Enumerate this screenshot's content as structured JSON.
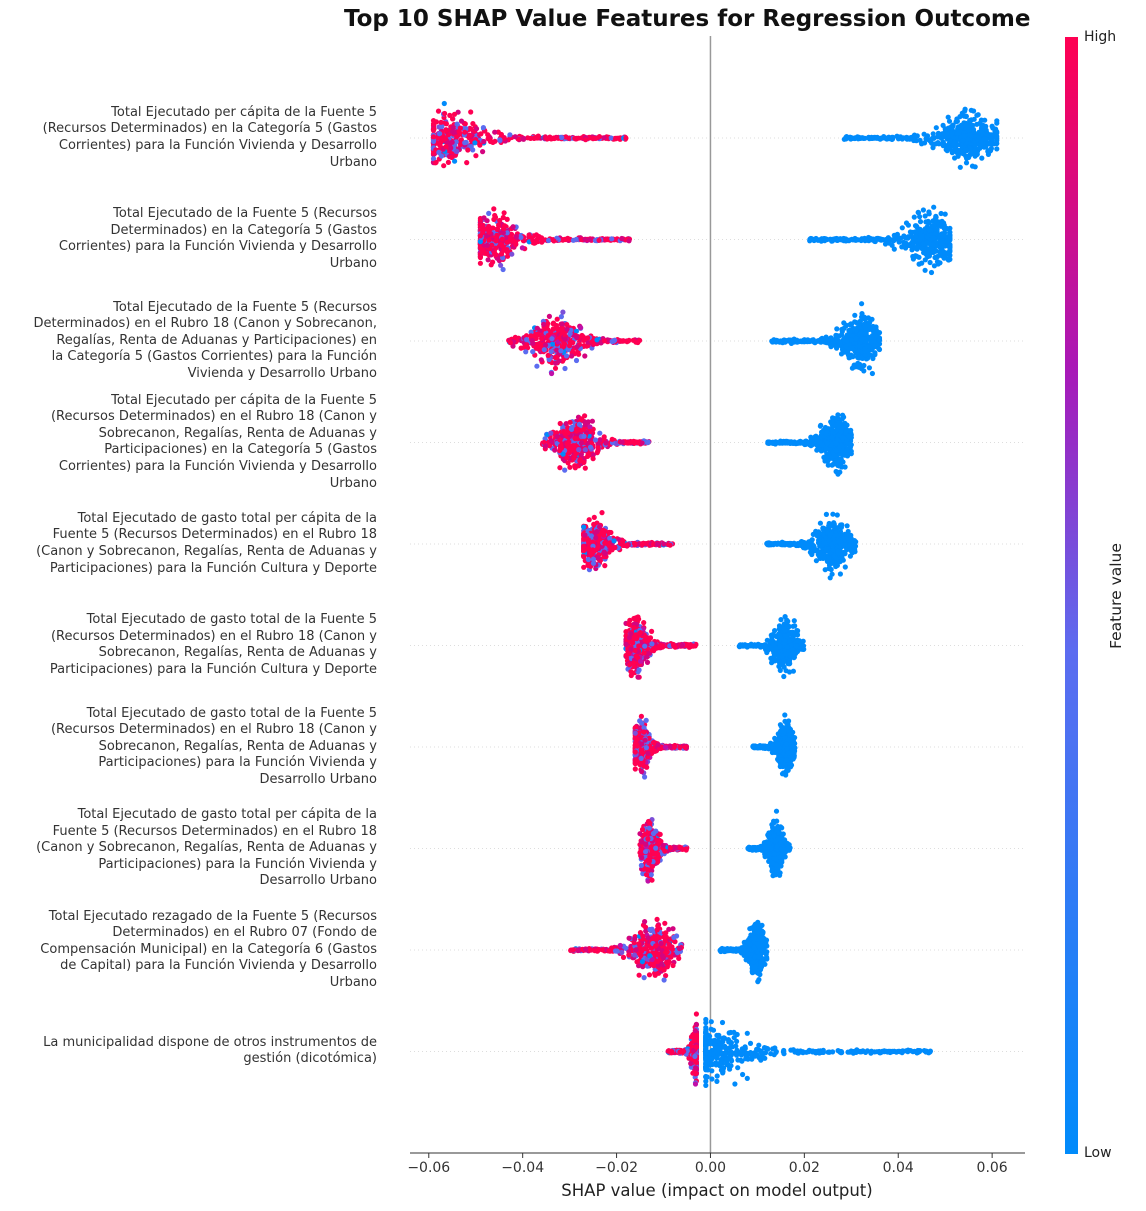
{
  "chart_data": {
    "type": "scatter",
    "subtype": "shap-beeswarm",
    "title": "Top 10 SHAP Value Features for Regression Outcome",
    "xlabel": "SHAP value (impact on model output)",
    "xlim": [
      -0.064,
      0.067
    ],
    "xticks": [
      -0.06,
      -0.04,
      -0.02,
      0.0,
      0.02,
      0.04,
      0.06
    ],
    "xtick_labels": [
      "−0.06",
      "−0.04",
      "−0.02",
      "0.00",
      "0.02",
      "0.04",
      "0.06"
    ],
    "grid": false,
    "colorbar": {
      "label": "Feature value",
      "high_label": "High",
      "low_label": "Low",
      "high_color": "#ff0052",
      "low_color": "#008bfb"
    },
    "features": [
      {
        "name": "Total Ejecutado per cápita de la Fuente 5 (Recursos Determinados) en la Categoría 5 (Gastos Corrientes) para la Función Vivienda y Desarrollo Urbano",
        "label_lines": [
          "Total Ejecutado per cápita de la Fuente 5",
          "(Recursos Determinados) en la Categoría 5 (Gastos",
          "Corrientes) para la Función Vivienda y Desarrollo",
          "Urbano"
        ],
        "low_range": [
          0.028,
          0.061
        ],
        "low_peak": 0.055,
        "high_range": [
          -0.059,
          -0.018
        ],
        "high_peak": -0.056
      },
      {
        "name": "Total Ejecutado de la Fuente 5 (Recursos Determinados) en la Categoría 5 (Gastos Corrientes) para la Función Vivienda y Desarrollo Urbano",
        "label_lines": [
          "Total Ejecutado de la Fuente 5 (Recursos",
          "Determinados) en la Categoría 5 (Gastos",
          "Corrientes) para la Función Vivienda y Desarrollo",
          "Urbano"
        ],
        "low_range": [
          0.021,
          0.051
        ],
        "low_peak": 0.047,
        "high_range": [
          -0.049,
          -0.017
        ],
        "high_peak": -0.047
      },
      {
        "name": "Total Ejecutado de la Fuente 5 (Recursos Determinados) en el Rubro 18 (Canon y Sobrecanon, Regalías, Renta de Aduanas y Participaciones) en la Categoría 5 (Gastos Corrientes) para la Función Vivienda y Desarrollo Urbano",
        "label_lines": [
          "Total Ejecutado de la Fuente 5 (Recursos",
          "Determinados) en el Rubro 18 (Canon y Sobrecanon,",
          "Regalías, Renta de Aduanas y Participaciones) en",
          "la Categoría 5 (Gastos Corrientes) para la Función",
          "Vivienda y Desarrollo Urbano"
        ],
        "low_range": [
          0.013,
          0.036
        ],
        "low_peak": 0.032,
        "high_range": [
          -0.043,
          -0.015
        ],
        "high_peak": -0.033
      },
      {
        "name": "Total Ejecutado per cápita de la Fuente 5 (Recursos Determinados) en el Rubro 18 (Canon y Sobrecanon, Regalías, Renta de Aduanas y Participaciones) en la Categoría 5 (Gastos Corrientes) para la Función Vivienda y Desarrollo Urbano",
        "label_lines": [
          "Total Ejecutado per cápita de la Fuente 5",
          "(Recursos Determinados) en el Rubro 18 (Canon y",
          "Sobrecanon, Regalías, Renta de Aduanas y",
          "Participaciones) en la Categoría 5 (Gastos",
          "Corrientes) para la Función Vivienda y Desarrollo",
          "Urbano"
        ],
        "low_range": [
          0.012,
          0.03
        ],
        "low_peak": 0.027,
        "high_range": [
          -0.036,
          -0.013
        ],
        "high_peak": -0.029
      },
      {
        "name": "Total Ejecutado de gasto total per cápita de la Fuente 5 (Recursos Determinados) en el Rubro 18 (Canon y Sobrecanon, Regalías, Renta de Aduanas y Participaciones) para la Función Cultura y Deporte",
        "label_lines": [
          "Total Ejecutado de gasto total per cápita de la",
          "Fuente 5 (Recursos Determinados) en el Rubro 18",
          "(Canon y Sobrecanon, Regalías, Renta de Aduanas y",
          "Participaciones) para la Función Cultura y Deporte"
        ],
        "low_range": [
          0.012,
          0.031
        ],
        "low_peak": 0.026,
        "high_range": [
          -0.027,
          -0.008
        ],
        "high_peak": -0.025
      },
      {
        "name": "Total Ejecutado de gasto total de la Fuente 5 (Recursos Determinados) en el Rubro 18 (Canon y Sobrecanon, Regalías, Renta de Aduanas y Participaciones) para la Función Cultura y Deporte",
        "label_lines": [
          "Total Ejecutado de gasto total de la Fuente 5",
          "(Recursos Determinados) en el Rubro 18 (Canon y",
          "Sobrecanon, Regalías, Renta de Aduanas y",
          "Participaciones) para la Función Cultura y Deporte"
        ],
        "low_range": [
          0.006,
          0.02
        ],
        "low_peak": 0.016,
        "high_range": [
          -0.018,
          -0.003
        ],
        "high_peak": -0.016
      },
      {
        "name": "Total Ejecutado de gasto total de la Fuente 5 (Recursos Determinados) en el Rubro 18 (Canon y Sobrecanon, Regalías, Renta de Aduanas y Participaciones) para la Función Vivienda y Desarrollo Urbano",
        "label_lines": [
          "Total Ejecutado de gasto total de la Fuente 5",
          "(Recursos Determinados) en el Rubro 18 (Canon y",
          "Sobrecanon, Regalías, Renta de Aduanas y",
          "Participaciones) para la Función Vivienda y",
          "Desarrollo Urbano"
        ],
        "low_range": [
          0.009,
          0.018
        ],
        "low_peak": 0.016,
        "high_range": [
          -0.016,
          -0.005
        ],
        "high_peak": -0.015
      },
      {
        "name": "Total Ejecutado de gasto total per cápita de la Fuente 5 (Recursos Determinados) en el Rubro 18 (Canon y Sobrecanon, Regalías, Renta de Aduanas y Participaciones) para la Función Vivienda y Desarrollo Urbano",
        "label_lines": [
          "Total Ejecutado de gasto total per cápita de la",
          "Fuente 5 (Recursos Determinados) en el Rubro 18",
          "(Canon y Sobrecanon, Regalías, Renta de Aduanas y",
          "Participaciones) para la Función Vivienda y",
          "Desarrollo Urbano"
        ],
        "low_range": [
          0.008,
          0.017
        ],
        "low_peak": 0.014,
        "high_range": [
          -0.015,
          -0.005
        ],
        "high_peak": -0.013
      },
      {
        "name": "Total Ejecutado rezagado de la Fuente 5 (Recursos Determinados) en el Rubro 07 (Fondo de Compensación Municipal) en la Categoría 6 (Gastos de Capital) para la Función Vivienda y Desarrollo Urbano",
        "label_lines": [
          "Total Ejecutado rezagado de la Fuente 5 (Recursos",
          "Determinados) en el Rubro 07 (Fondo de",
          "Compensación Municipal) en la Categoría 6 (Gastos",
          "de Capital) para la Función Vivienda y Desarrollo",
          "Urbano"
        ],
        "low_range": [
          0.002,
          0.012
        ],
        "low_peak": 0.01,
        "high_range": [
          -0.03,
          -0.006
        ],
        "high_peak": -0.012
      },
      {
        "name": "La municipalidad dispone de otros instrumentos de gestión (dicotómica)",
        "label_lines": [
          "La municipalidad dispone de otros instrumentos de",
          "gestión (dicotómica)"
        ],
        "low_range": [
          -0.001,
          0.047
        ],
        "low_peak": 0.0,
        "high_range": [
          -0.009,
          -0.003
        ],
        "high_peak": -0.003
      }
    ]
  }
}
